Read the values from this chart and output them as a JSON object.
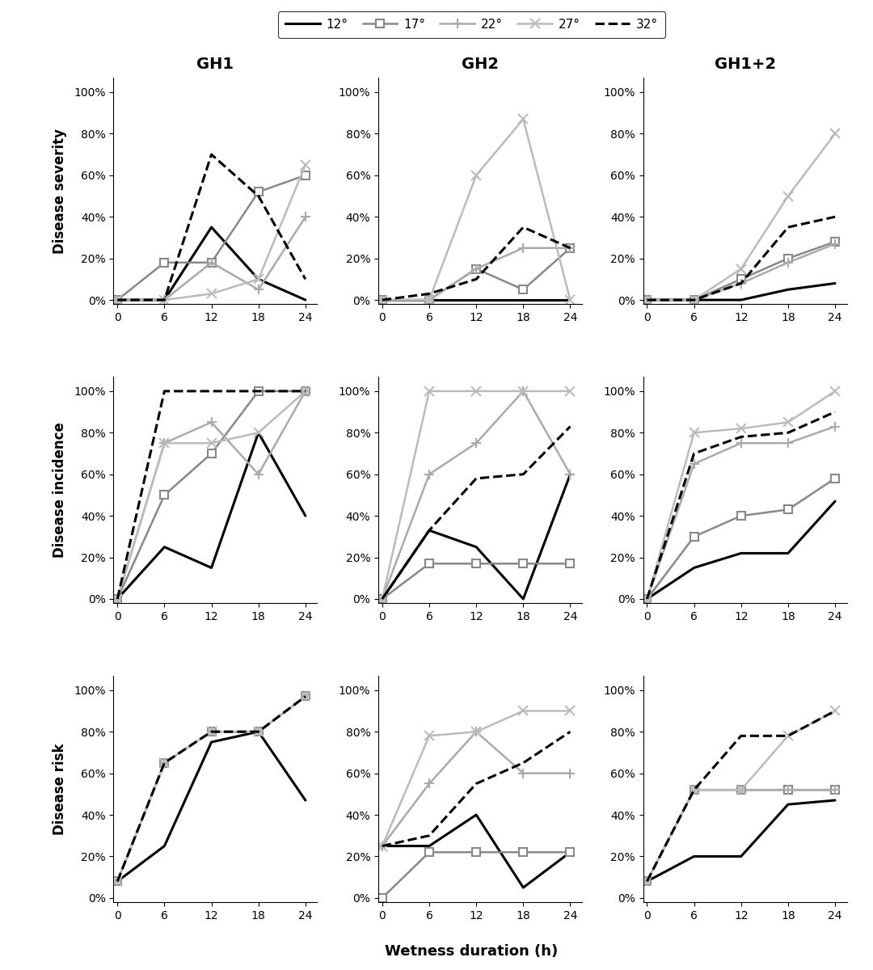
{
  "x": [
    0,
    6,
    12,
    18,
    24
  ],
  "temperatures": [
    "12°",
    "17°",
    "22°",
    "27°",
    "32°"
  ],
  "col_labels": [
    "GH1",
    "GH2",
    "GH1+2"
  ],
  "row_labels": [
    "Disease severity",
    "Disease incidence",
    "Disease risk"
  ],
  "row_keys": [
    "severity",
    "incidence",
    "risk"
  ],
  "line_colors": {
    "12°": "#000000",
    "17°": "#888888",
    "22°": "#aaaaaa",
    "27°": "#bbbbbb",
    "32°": "#000000"
  },
  "line_styles": {
    "12°": "-",
    "17°": "-",
    "22°": "-",
    "27°": "-",
    "32°": "--"
  },
  "markers": {
    "12°": null,
    "17°": "s",
    "22°": "+",
    "27°": "x",
    "32°": null
  },
  "lwidths": {
    "12°": 2.2,
    "17°": 1.8,
    "22°": 1.8,
    "27°": 1.8,
    "32°": 2.2
  },
  "data": {
    "severity": {
      "GH1": {
        "12°": [
          0,
          0,
          35,
          10,
          0
        ],
        "17°": [
          0,
          18,
          18,
          52,
          60
        ],
        "22°": [
          0,
          0,
          18,
          5,
          40
        ],
        "27°": [
          0,
          0,
          3,
          10,
          65
        ],
        "32°": [
          0,
          0,
          70,
          50,
          10
        ]
      },
      "GH2": {
        "12°": [
          0,
          0,
          0,
          0,
          0
        ],
        "17°": [
          0,
          0,
          15,
          5,
          25
        ],
        "22°": [
          0,
          0,
          15,
          25,
          25
        ],
        "27°": [
          0,
          0,
          60,
          87,
          0
        ],
        "32°": [
          0,
          3,
          10,
          35,
          25
        ]
      },
      "GH1+2": {
        "12°": [
          0,
          0,
          0,
          5,
          8
        ],
        "17°": [
          0,
          0,
          10,
          20,
          28
        ],
        "22°": [
          0,
          0,
          8,
          18,
          27
        ],
        "27°": [
          0,
          0,
          15,
          50,
          80
        ],
        "32°": [
          0,
          0,
          8,
          35,
          40
        ]
      }
    },
    "incidence": {
      "GH1": {
        "12°": [
          0,
          25,
          15,
          80,
          40
        ],
        "17°": [
          0,
          50,
          70,
          100,
          100
        ],
        "22°": [
          0,
          75,
          85,
          60,
          100
        ],
        "27°": [
          0,
          75,
          75,
          80,
          100
        ],
        "32°": [
          0,
          100,
          100,
          100,
          100
        ]
      },
      "GH2": {
        "12°": [
          0,
          33,
          25,
          0,
          60
        ],
        "17°": [
          0,
          17,
          17,
          17,
          17
        ],
        "22°": [
          0,
          60,
          75,
          100,
          60
        ],
        "27°": [
          0,
          100,
          100,
          100,
          100
        ],
        "32°": [
          0,
          33,
          58,
          60,
          83
        ]
      },
      "GH1+2": {
        "12°": [
          0,
          15,
          22,
          22,
          47
        ],
        "17°": [
          0,
          30,
          40,
          43,
          58
        ],
        "22°": [
          0,
          65,
          75,
          75,
          83
        ],
        "27°": [
          0,
          80,
          82,
          85,
          100
        ],
        "32°": [
          0,
          70,
          78,
          80,
          90
        ]
      }
    },
    "risk": {
      "GH1": {
        "12°": [
          8,
          25,
          75,
          80,
          47
        ],
        "17°": [
          8,
          65,
          80,
          80,
          97
        ],
        "22°": [
          8,
          65,
          80,
          80,
          97
        ],
        "27°": [
          8,
          65,
          80,
          80,
          97
        ],
        "32°": [
          8,
          65,
          80,
          80,
          97
        ]
      },
      "GH2": {
        "12°": [
          25,
          25,
          40,
          5,
          22
        ],
        "17°": [
          0,
          22,
          22,
          22,
          22
        ],
        "22°": [
          25,
          55,
          80,
          60,
          60
        ],
        "27°": [
          25,
          78,
          80,
          90,
          90
        ],
        "32°": [
          25,
          30,
          55,
          65,
          80
        ]
      },
      "GH1+2": {
        "12°": [
          8,
          20,
          20,
          45,
          47
        ],
        "17°": [
          8,
          52,
          52,
          52,
          52
        ],
        "22°": [
          8,
          52,
          52,
          52,
          52
        ],
        "27°": [
          8,
          52,
          52,
          78,
          90
        ],
        "32°": [
          8,
          52,
          78,
          78,
          90
        ]
      }
    }
  }
}
